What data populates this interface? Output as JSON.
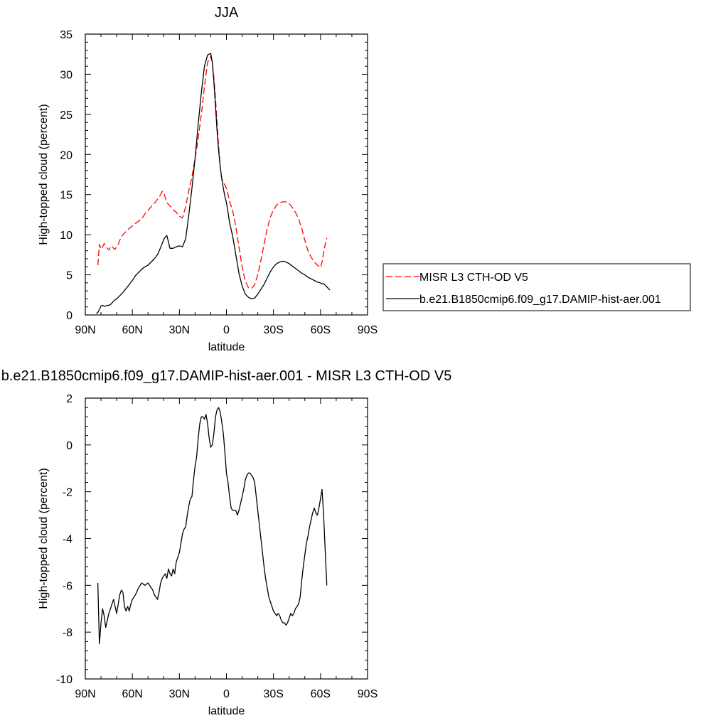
{
  "chart_data": [
    {
      "type": "line",
      "title": "JJA",
      "xlabel": "latitude",
      "ylabel": "High-topped cloud (percent)",
      "xlim": [
        90,
        -90
      ],
      "ylim": [
        0,
        35
      ],
      "x_ticks": [
        90,
        60,
        30,
        0,
        -30,
        -60,
        -90
      ],
      "x_tick_labels": [
        "90N",
        "60N",
        "30N",
        "0",
        "30S",
        "60S",
        "90S"
      ],
      "y_ticks": [
        0,
        5,
        10,
        15,
        20,
        25,
        30,
        35
      ],
      "y_tick_labels": [
        "0",
        "5",
        "10",
        "15",
        "20",
        "25",
        "30",
        "35"
      ],
      "legend_position": "right",
      "series": [
        {
          "name": "MISR L3 CTH-OD V5",
          "color": "#ff0000",
          "dash": "dashed",
          "x": [
            82,
            81,
            80,
            79,
            78,
            77,
            76,
            75,
            74,
            73,
            72,
            71,
            70,
            69,
            68,
            67,
            66,
            65,
            64,
            63,
            62,
            61,
            60,
            58,
            56,
            54,
            52,
            50,
            48,
            46,
            44,
            42,
            41,
            40,
            39,
            38,
            37,
            36,
            34,
            32,
            30,
            28,
            26,
            24,
            22,
            20,
            18,
            16,
            14,
            12,
            10,
            9,
            8,
            7,
            6,
            5,
            4,
            3,
            2,
            1,
            0,
            -1,
            -2,
            -4,
            -6,
            -8,
            -10,
            -12,
            -14,
            -16,
            -18,
            -20,
            -22,
            -24,
            -26,
            -28,
            -30,
            -32,
            -34,
            -36,
            -38,
            -40,
            -42,
            -44,
            -46,
            -48,
            -50,
            -52,
            -54,
            -56,
            -58,
            -60,
            -61,
            -62,
            -63,
            -64
          ],
          "y": [
            6.2,
            8.8,
            8.2,
            8.5,
            8.9,
            8.6,
            8.3,
            8.1,
            8.4,
            8.6,
            8.3,
            8.2,
            8.5,
            8.8,
            9.3,
            9.7,
            10.0,
            10.2,
            10.4,
            10.6,
            10.8,
            10.9,
            11.1,
            11.4,
            11.7,
            12.0,
            12.6,
            13.0,
            13.5,
            13.9,
            14.4,
            15.0,
            15.4,
            15.3,
            14.6,
            14.0,
            13.8,
            13.6,
            13.1,
            12.8,
            12.3,
            12.1,
            13.5,
            15.5,
            17.2,
            19.5,
            22.0,
            25.0,
            28.5,
            31.5,
            32.2,
            31.5,
            29.5,
            27.0,
            24.0,
            21.0,
            18.5,
            17.0,
            16.5,
            16.2,
            15.8,
            15.0,
            14.2,
            13.0,
            11.0,
            8.5,
            6.0,
            4.2,
            3.4,
            3.3,
            3.8,
            5.0,
            6.8,
            8.8,
            10.7,
            12.2,
            13.1,
            13.7,
            14.0,
            14.1,
            14.1,
            13.9,
            13.4,
            12.8,
            12.0,
            10.8,
            9.3,
            8.0,
            7.2,
            6.6,
            6.2,
            5.9,
            6.6,
            7.8,
            8.8,
            9.6
          ]
        },
        {
          "name": "b.e21.B1850cmip6.f09_g17.DAMIP-hist-aer.001",
          "color": "#000000",
          "dash": "solid",
          "x": [
            83,
            82,
            81,
            80,
            79,
            78,
            77,
            76,
            75,
            74,
            73,
            72,
            71,
            70,
            68,
            66,
            64,
            62,
            60,
            58,
            56,
            54,
            52,
            50,
            48,
            46,
            44,
            42,
            40,
            39,
            38,
            37,
            36,
            34,
            32,
            30,
            28,
            26,
            24,
            22,
            20,
            18,
            16,
            14,
            12,
            10,
            9,
            8,
            7,
            6,
            5,
            4,
            3,
            2,
            1,
            0,
            -1,
            -2,
            -4,
            -6,
            -8,
            -10,
            -12,
            -14,
            -16,
            -18,
            -20,
            -22,
            -24,
            -26,
            -28,
            -30,
            -32,
            -34,
            -36,
            -38,
            -40,
            -42,
            -44,
            -46,
            -48,
            -50,
            -52,
            -54,
            -56,
            -58,
            -60,
            -61,
            -62,
            -63,
            -64,
            -65,
            -66
          ],
          "y": [
            0.2,
            0.3,
            0.7,
            1.1,
            1.2,
            1.1,
            1.1,
            1.2,
            1.2,
            1.3,
            1.5,
            1.7,
            1.9,
            2.0,
            2.4,
            2.8,
            3.3,
            3.8,
            4.3,
            4.9,
            5.3,
            5.7,
            6.0,
            6.2,
            6.6,
            7.0,
            7.5,
            8.4,
            9.4,
            9.7,
            9.9,
            9.1,
            8.3,
            8.3,
            8.5,
            8.6,
            8.5,
            9.5,
            12.5,
            15.8,
            19.5,
            23.8,
            27.7,
            31.0,
            32.4,
            32.6,
            31.5,
            29.0,
            26.0,
            23.0,
            20.5,
            18.5,
            17.0,
            15.8,
            14.8,
            14.0,
            12.8,
            11.5,
            9.8,
            7.5,
            5.2,
            3.6,
            2.6,
            2.2,
            2.0,
            2.1,
            2.6,
            3.2,
            3.8,
            4.6,
            5.4,
            6.0,
            6.4,
            6.6,
            6.7,
            6.6,
            6.4,
            6.1,
            5.8,
            5.5,
            5.2,
            5.0,
            4.7,
            4.5,
            4.3,
            4.1,
            4.0,
            3.9,
            3.9,
            3.7,
            3.5,
            3.3,
            3.1
          ]
        }
      ]
    },
    {
      "type": "line",
      "title": "b.e21.B1850cmip6.f09_g17.DAMIP-hist-aer.001 - MISR L3 CTH-OD V5",
      "xlabel": "latitude",
      "ylabel": "High-topped cloud (percent)",
      "xlim": [
        90,
        -90
      ],
      "ylim": [
        -10,
        2
      ],
      "x_ticks": [
        90,
        60,
        30,
        0,
        -30,
        -60,
        -90
      ],
      "x_tick_labels": [
        "90N",
        "60N",
        "30N",
        "0",
        "30S",
        "60S",
        "90S"
      ],
      "y_ticks": [
        -10,
        -8,
        -6,
        -4,
        -2,
        0,
        2
      ],
      "y_tick_labels": [
        "-10",
        "-8",
        "-6",
        "-4",
        "-2",
        "0",
        "2"
      ],
      "series": [
        {
          "color": "#000000",
          "dash": "solid",
          "x": [
            82,
            81,
            80,
            79,
            78,
            77,
            76,
            75,
            74,
            73,
            72,
            71,
            70,
            69,
            68,
            67,
            66,
            65,
            64,
            63,
            62,
            61,
            60,
            58,
            56,
            54,
            52,
            50,
            48,
            47,
            46,
            45,
            44,
            43,
            42,
            41,
            40,
            39,
            38,
            37,
            36,
            35,
            34,
            33,
            32,
            31,
            30,
            29,
            28,
            27,
            26,
            25,
            24,
            23,
            22,
            21,
            20,
            19,
            18,
            17,
            16,
            15,
            14,
            13,
            12,
            11,
            10,
            9,
            8,
            7,
            6,
            5,
            4,
            3,
            2,
            1,
            0,
            -1,
            -2,
            -3,
            -4,
            -5,
            -6,
            -7,
            -8,
            -9,
            -10,
            -11,
            -12,
            -13,
            -14,
            -15,
            -16,
            -17,
            -18,
            -19,
            -20,
            -21,
            -22,
            -23,
            -24,
            -25,
            -26,
            -27,
            -28,
            -29,
            -30,
            -31,
            -32,
            -33,
            -34,
            -35,
            -36,
            -37,
            -38,
            -39,
            -40,
            -41,
            -42,
            -43,
            -44,
            -45,
            -46,
            -47,
            -48,
            -49,
            -50,
            -51,
            -52,
            -53,
            -54,
            -55,
            -56,
            -57,
            -58,
            -59,
            -60,
            -61,
            -62,
            -63,
            -64
          ],
          "y": [
            -5.9,
            -8.5,
            -7.6,
            -7.0,
            -7.3,
            -7.8,
            -7.5,
            -7.2,
            -7.0,
            -6.8,
            -6.6,
            -6.9,
            -7.2,
            -6.8,
            -6.4,
            -6.2,
            -6.3,
            -6.9,
            -7.1,
            -6.9,
            -7.1,
            -6.8,
            -6.6,
            -6.4,
            -6.1,
            -5.9,
            -6.0,
            -5.9,
            -6.1,
            -6.2,
            -6.4,
            -6.5,
            -6.6,
            -6.3,
            -5.9,
            -5.7,
            -5.6,
            -5.5,
            -5.7,
            -5.3,
            -5.5,
            -5.6,
            -5.3,
            -5.5,
            -5.0,
            -4.8,
            -4.6,
            -4.2,
            -3.8,
            -3.6,
            -3.5,
            -3.0,
            -2.6,
            -2.3,
            -2.2,
            -1.5,
            -0.9,
            -0.5,
            0.3,
            0.9,
            1.2,
            1.2,
            1.1,
            1.3,
            0.9,
            0.3,
            -0.1,
            0.0,
            0.5,
            1.2,
            1.5,
            1.6,
            1.4,
            1.0,
            0.5,
            -0.3,
            -1.2,
            -1.6,
            -2.2,
            -2.7,
            -2.8,
            -2.8,
            -2.8,
            -3.0,
            -2.8,
            -2.5,
            -2.2,
            -1.9,
            -1.5,
            -1.3,
            -1.2,
            -1.2,
            -1.3,
            -1.4,
            -1.6,
            -2.2,
            -2.8,
            -3.4,
            -4.0,
            -4.6,
            -5.2,
            -5.7,
            -6.1,
            -6.5,
            -6.7,
            -6.9,
            -7.1,
            -7.2,
            -7.3,
            -7.2,
            -7.3,
            -7.5,
            -7.6,
            -7.6,
            -7.7,
            -7.6,
            -7.4,
            -7.2,
            -7.3,
            -7.2,
            -7.0,
            -6.9,
            -6.8,
            -6.5,
            -5.8,
            -5.2,
            -4.7,
            -4.2,
            -3.9,
            -3.5,
            -3.2,
            -2.9,
            -2.7,
            -2.9,
            -3.0,
            -2.7,
            -2.3,
            -1.9,
            -3.0,
            -4.5,
            -6.0
          ]
        }
      ]
    }
  ]
}
